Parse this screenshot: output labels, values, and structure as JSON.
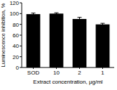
{
  "chart_data": {
    "type": "bar",
    "x_label": "Extract concentration, µg/ml",
    "y_label": "Luminescence inhibition, %",
    "categories": [
      "SOD",
      "10",
      "2",
      "1"
    ],
    "values": [
      99,
      100,
      90,
      80
    ],
    "errors": [
      2,
      1.5,
      3,
      2
    ],
    "color": "#000000",
    "ylim": [
      0,
      120
    ],
    "yticks": [
      0,
      20,
      40,
      60,
      80,
      100,
      120
    ],
    "grid": false
  }
}
